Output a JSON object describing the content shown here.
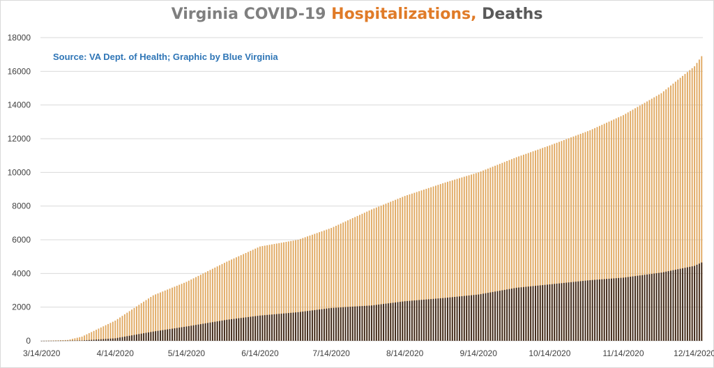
{
  "title": {
    "part1": "Virginia COVID-19",
    "part2": "Hospitalizations,",
    "part3": "Deaths"
  },
  "source": "Source: VA Dept. of Health; Graphic by Blue Virginia",
  "chart_data": {
    "type": "bar",
    "title": "Virginia COVID-19 Hospitalizations, Deaths",
    "ylim": [
      0,
      18000
    ],
    "yticks": [
      0,
      2000,
      4000,
      6000,
      8000,
      10000,
      12000,
      14000,
      16000,
      18000
    ],
    "xtick_labels": [
      "3/14/2020",
      "4/14/2020",
      "5/14/2020",
      "6/14/2020",
      "7/14/2020",
      "8/14/2020",
      "9/14/2020",
      "10/14/2020",
      "11/14/2020",
      "12/14/2020"
    ],
    "x_range": [
      "3/14/2020",
      "12/17/2020"
    ],
    "grid": true,
    "legend": "none",
    "colors": {
      "hospitalizations": "#e0a860",
      "deaths": "#3a2416",
      "grid": "#d9d9d9"
    },
    "series": [
      {
        "key": "hospitalizations",
        "points": [
          {
            "x": "3/14/2020",
            "y": 0
          },
          {
            "x": "3/25/2020",
            "y": 50
          },
          {
            "x": "3/31/2020",
            "y": 250
          },
          {
            "x": "4/14/2020",
            "y": 1200
          },
          {
            "x": "4/30/2020",
            "y": 2700
          },
          {
            "x": "5/14/2020",
            "y": 3500
          },
          {
            "x": "5/31/2020",
            "y": 4700
          },
          {
            "x": "6/14/2020",
            "y": 5600
          },
          {
            "x": "6/30/2020",
            "y": 6000
          },
          {
            "x": "7/14/2020",
            "y": 6700
          },
          {
            "x": "7/31/2020",
            "y": 7800
          },
          {
            "x": "8/14/2020",
            "y": 8600
          },
          {
            "x": "8/31/2020",
            "y": 9400
          },
          {
            "x": "9/14/2020",
            "y": 10000
          },
          {
            "x": "9/30/2020",
            "y": 10900
          },
          {
            "x": "10/14/2020",
            "y": 11600
          },
          {
            "x": "10/31/2020",
            "y": 12500
          },
          {
            "x": "11/14/2020",
            "y": 13400
          },
          {
            "x": "11/30/2020",
            "y": 14700
          },
          {
            "x": "12/14/2020",
            "y": 16300
          },
          {
            "x": "12/17/2020",
            "y": 16900
          }
        ]
      },
      {
        "key": "deaths",
        "points": [
          {
            "x": "3/14/2020",
            "y": 0
          },
          {
            "x": "3/31/2020",
            "y": 20
          },
          {
            "x": "4/14/2020",
            "y": 150
          },
          {
            "x": "4/30/2020",
            "y": 550
          },
          {
            "x": "5/14/2020",
            "y": 850
          },
          {
            "x": "5/31/2020",
            "y": 1250
          },
          {
            "x": "6/14/2020",
            "y": 1500
          },
          {
            "x": "6/30/2020",
            "y": 1700
          },
          {
            "x": "7/14/2020",
            "y": 1950
          },
          {
            "x": "7/31/2020",
            "y": 2100
          },
          {
            "x": "8/14/2020",
            "y": 2350
          },
          {
            "x": "8/31/2020",
            "y": 2550
          },
          {
            "x": "9/14/2020",
            "y": 2750
          },
          {
            "x": "9/30/2020",
            "y": 3150
          },
          {
            "x": "10/14/2020",
            "y": 3350
          },
          {
            "x": "10/31/2020",
            "y": 3600
          },
          {
            "x": "11/14/2020",
            "y": 3750
          },
          {
            "x": "11/30/2020",
            "y": 4050
          },
          {
            "x": "12/14/2020",
            "y": 4450
          },
          {
            "x": "12/17/2020",
            "y": 4650
          }
        ]
      }
    ]
  }
}
